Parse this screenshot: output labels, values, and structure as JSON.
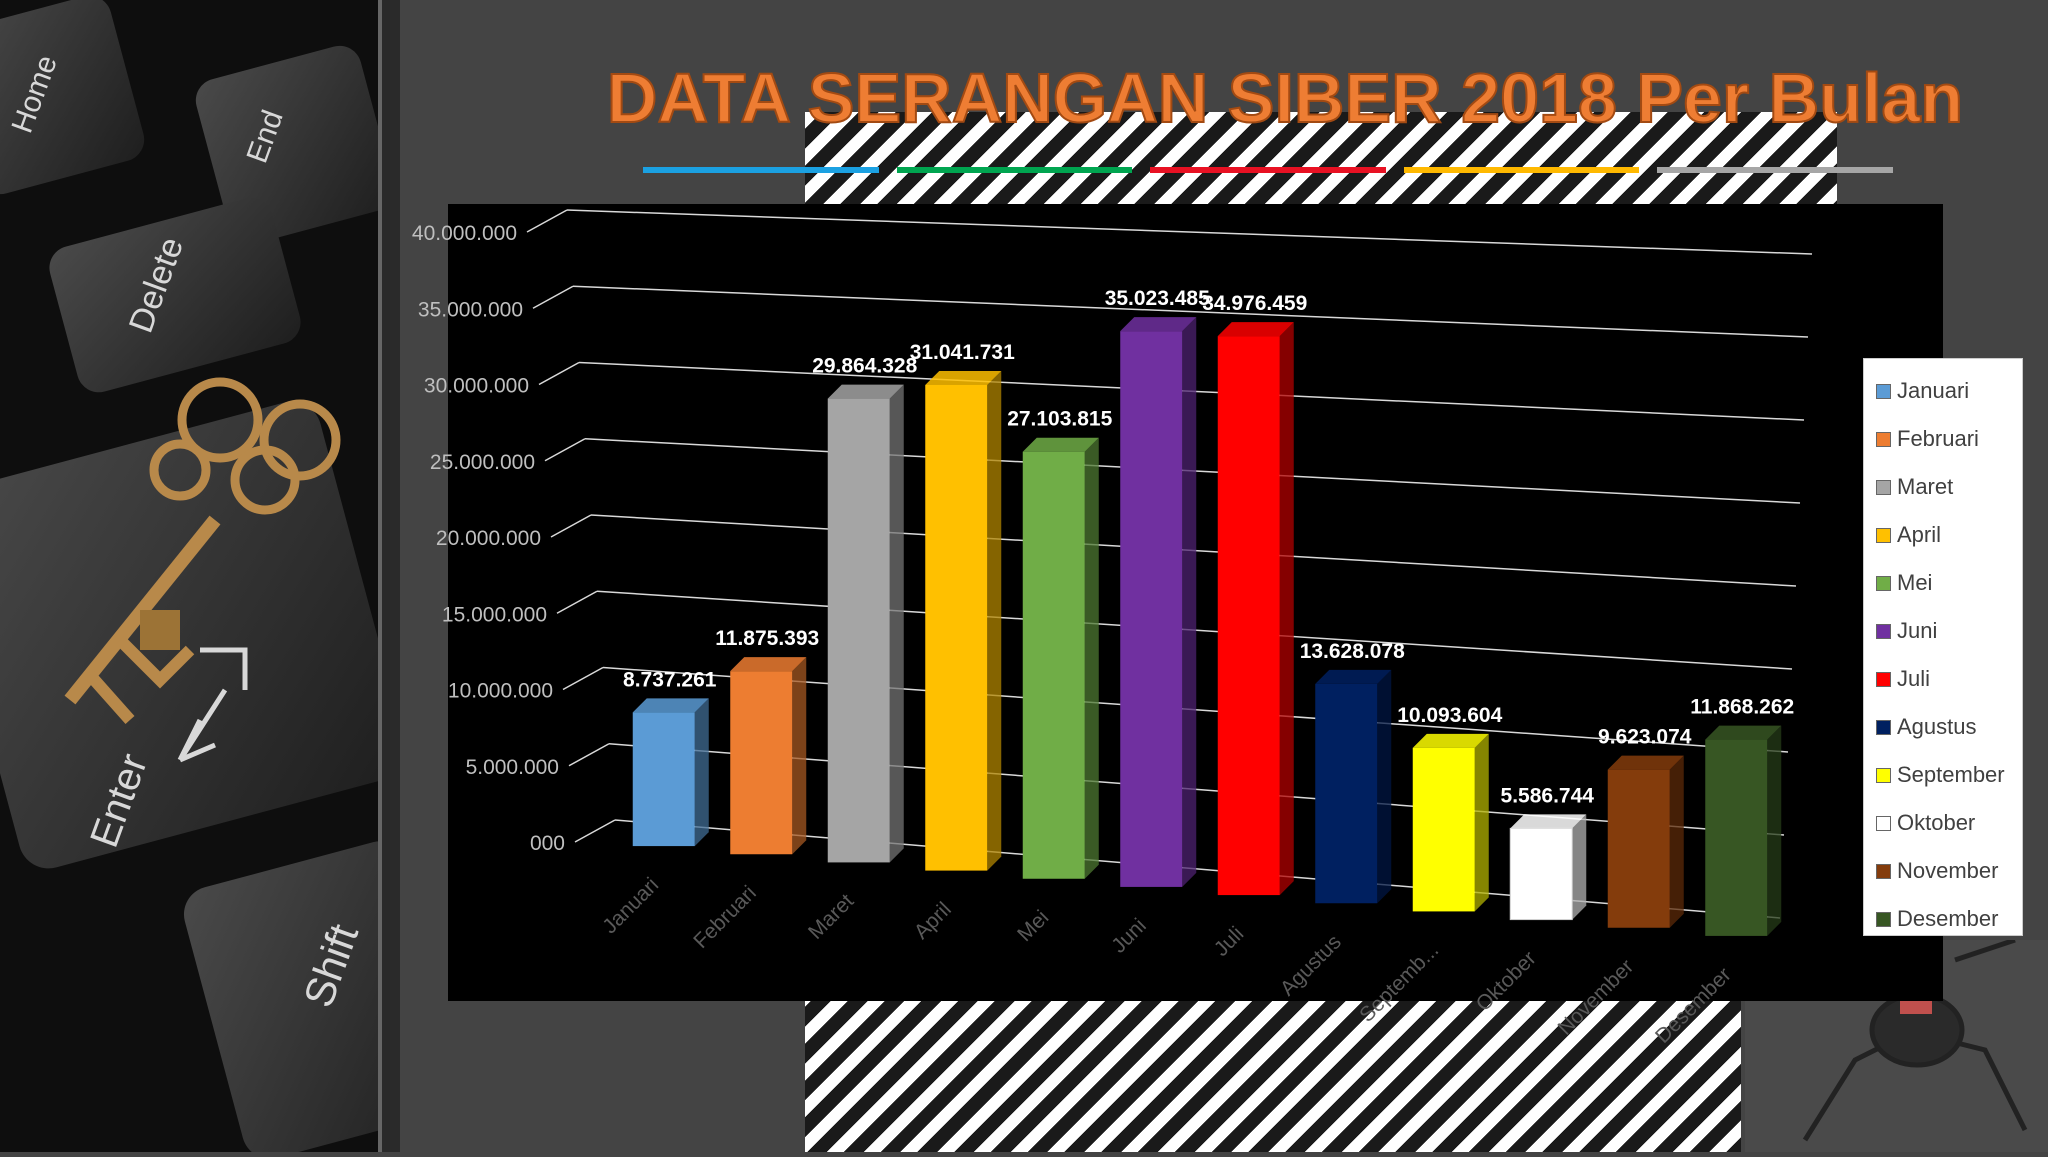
{
  "slide": {
    "title": "DATA SERANGAN SIBER 2018 Per Bulan",
    "underline_colors": [
      "#1ba1e2",
      "#00a550",
      "#e81123",
      "#ffb900",
      "#a6a6a6"
    ],
    "title_color": "#ee7d33"
  },
  "decoration": {
    "keyboard_keys": [
      "Home",
      "End",
      "Delete",
      "Enter",
      "Shift"
    ]
  },
  "chart_data": {
    "type": "bar",
    "title": "",
    "xlabel": "",
    "ylabel": "",
    "ylim": [
      0,
      40000000
    ],
    "y_ticks": [
      "000",
      "5.000.000",
      "10.000.000",
      "15.000.000",
      "20.000.000",
      "25.000.000",
      "30.000.000",
      "35.000.000",
      "40.000.000"
    ],
    "categories": [
      "Januari",
      "Februari",
      "Maret",
      "April",
      "Mei",
      "Juni",
      "Juli",
      "Agustus",
      "Septemb...",
      "Oktober",
      "November",
      "Desember"
    ],
    "values": [
      8737261,
      11875393,
      29864328,
      31041731,
      27103815,
      35023485,
      34976459,
      13628078,
      10093604,
      5586744,
      9623074,
      11868262
    ],
    "data_labels": [
      "8.737.261",
      "11.875.393",
      "29.864.328",
      "31.041.731",
      "27.103.815",
      "35.023.485",
      "34.976.459",
      "13.628.078",
      "10.093.604",
      "5.586.744",
      "9.623.074",
      "11.868.262"
    ],
    "colors": [
      "#5b9bd5",
      "#ed7d31",
      "#a5a5a5",
      "#ffc000",
      "#70ad47",
      "#7030a0",
      "#ff0000",
      "#002060",
      "#ffff00",
      "#ffffff",
      "#843c0c",
      "#375623"
    ],
    "legend": [
      "Januari",
      "Februari",
      "Maret",
      "April",
      "Mei",
      "Juni",
      "Juli",
      "Agustus",
      "September",
      "Oktober",
      "November",
      "Desember"
    ],
    "legend_position": "right",
    "grid": true
  }
}
